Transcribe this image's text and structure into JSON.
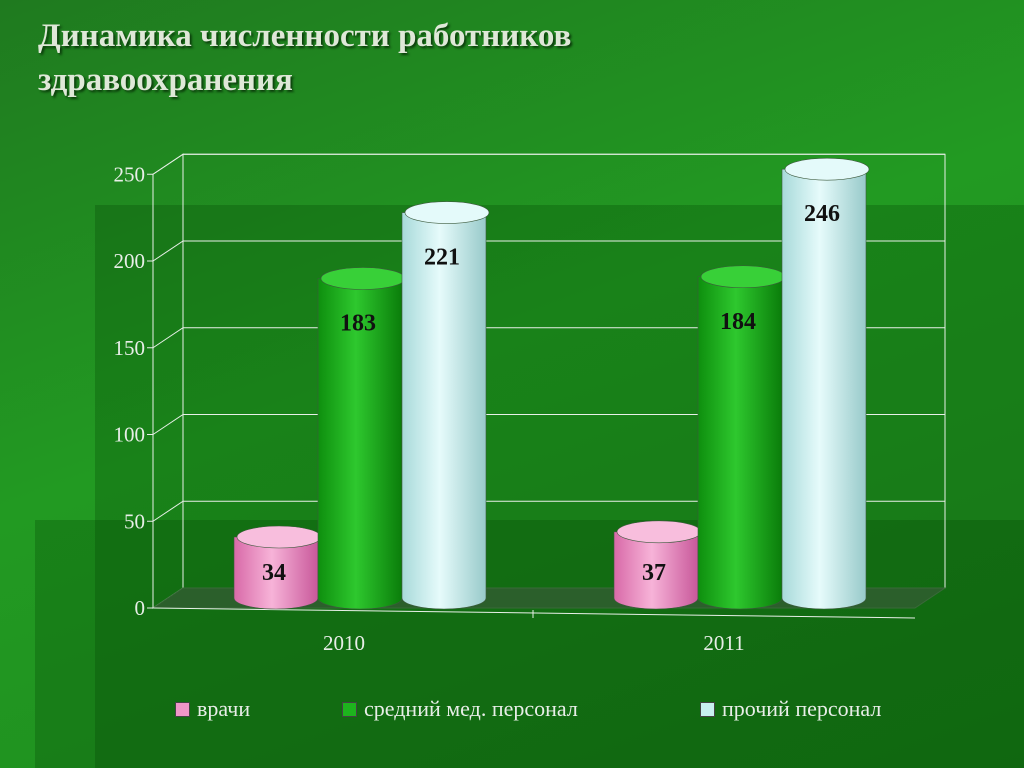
{
  "title": [
    "Динамика численности работников",
    "здравоохранения"
  ],
  "colors": {
    "background": "#1e8a1e",
    "doctors": "#f096c8",
    "mid_staff": "#1eb41e",
    "other_staff": "#c8f0f0"
  },
  "chart_data": {
    "type": "bar",
    "style": "3d-cylinder",
    "title": "Динамика численности работников здравоохранения",
    "categories": [
      "2010",
      "2011"
    ],
    "series": [
      {
        "name": "врачи",
        "values": [
          34,
          37
        ],
        "color": "#f096c8"
      },
      {
        "name": "средний мед. персонал",
        "values": [
          183,
          184
        ],
        "color": "#1eb41e"
      },
      {
        "name": "прочий персонал",
        "values": [
          221,
          246
        ],
        "color": "#c8f0f0"
      }
    ],
    "y_ticks": [
      "0",
      "50",
      "100",
      "150",
      "200",
      "250"
    ],
    "ylim": [
      0,
      250
    ],
    "grid": true,
    "data_labels": true,
    "legend_position": "bottom"
  }
}
